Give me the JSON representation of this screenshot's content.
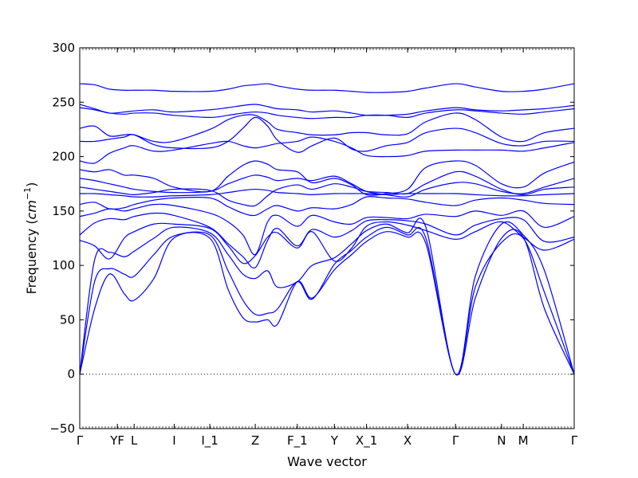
{
  "chart_data": {
    "type": "line",
    "title": "",
    "xlabel": "Wave vector",
    "ylabel_prefix": "Frequency (",
    "ylabel_unit_base": "cm",
    "ylabel_unit_exp": "−1",
    "ylabel_suffix": ")",
    "ylim": [
      -50,
      300
    ],
    "yticks": [
      -50,
      0,
      50,
      100,
      150,
      200,
      250,
      300
    ],
    "ytick_labels": [
      "−50",
      "0",
      "50",
      "100",
      "150",
      "200",
      "250",
      "300"
    ],
    "grid": false,
    "legend": "none",
    "line_color": "#0000ff",
    "zero_line_color": "#000000",
    "xlim": [
      0,
      1
    ],
    "high_symmetry_points": [
      {
        "label": "Γ",
        "x": 0.0
      },
      {
        "label": "YF",
        "x": 0.076
      },
      {
        "label": "L",
        "x": 0.11
      },
      {
        "label": "I",
        "x": 0.191
      },
      {
        "label": "I_1",
        "x": 0.263
      },
      {
        "label": "Z",
        "x": 0.355
      },
      {
        "label": "F_1",
        "x": 0.44
      },
      {
        "label": "Y",
        "x": 0.515
      },
      {
        "label": "X_1",
        "x": 0.58
      },
      {
        "label": "X",
        "x": 0.663
      },
      {
        "label": "Γ",
        "x": 0.76
      },
      {
        "label": "N",
        "x": 0.853
      },
      {
        "label": "M",
        "x": 0.897
      },
      {
        "label": "Γ",
        "x": 1.0
      }
    ],
    "series": [
      {
        "x": [
          0,
          0.03,
          0.06,
          0.09,
          0.11,
          0.15,
          0.19,
          0.263,
          0.3,
          0.33,
          0.355,
          0.38,
          0.4,
          0.44,
          0.47,
          0.515,
          0.55,
          0.58,
          0.62,
          0.663,
          0.7,
          0.76,
          0.8,
          0.853,
          0.897,
          0.94,
          1.0
        ],
        "y": [
          0,
          60,
          92,
          74,
          68,
          88,
          125,
          125,
          78,
          52,
          48,
          50,
          46,
          85,
          70,
          96,
          110,
          122,
          131,
          126,
          120,
          0,
          70,
          125,
          126,
          60,
          0
        ]
      },
      {
        "x": [
          0,
          0.03,
          0.06,
          0.09,
          0.11,
          0.15,
          0.19,
          0.263,
          0.3,
          0.33,
          0.355,
          0.38,
          0.4,
          0.44,
          0.47,
          0.515,
          0.55,
          0.58,
          0.62,
          0.663,
          0.7,
          0.76,
          0.8,
          0.853,
          0.897,
          0.94,
          1.0
        ],
        "y": [
          0,
          85,
          97,
          92,
          90,
          110,
          127,
          128,
          95,
          68,
          55,
          56,
          60,
          85,
          69,
          101,
          114,
          126,
          135,
          128,
          125,
          0,
          80,
          121,
          125,
          75,
          0
        ]
      },
      {
        "x": [
          0,
          0.03,
          0.06,
          0.09,
          0.11,
          0.15,
          0.19,
          0.263,
          0.3,
          0.33,
          0.355,
          0.38,
          0.4,
          0.44,
          0.47,
          0.515,
          0.55,
          0.58,
          0.62,
          0.663,
          0.7,
          0.76,
          0.8,
          0.853,
          0.897,
          0.94,
          1.0
        ],
        "y": [
          0,
          105,
          112,
          108,
          113,
          125,
          135,
          130,
          110,
          92,
          88,
          95,
          80,
          85,
          100,
          107,
          120,
          132,
          138,
          130,
          135,
          0,
          90,
          138,
          128,
          95,
          0
        ]
      },
      {
        "x": [
          0,
          0.03,
          0.06,
          0.09,
          0.11,
          0.15,
          0.19,
          0.263,
          0.3,
          0.33,
          0.355,
          0.38,
          0.4,
          0.44,
          0.47,
          0.515,
          0.55,
          0.58,
          0.62,
          0.663,
          0.7,
          0.76,
          0.8,
          0.853,
          0.897,
          0.94,
          1.0
        ],
        "y": [
          123,
          118,
          106,
          125,
          131,
          138,
          138,
          134,
          118,
          102,
          109,
          126,
          130,
          116,
          131,
          104,
          116,
          136,
          140,
          137,
          132,
          124,
          131,
          140,
          126,
          114,
          124
        ]
      },
      {
        "x": [
          0,
          0.03,
          0.06,
          0.09,
          0.11,
          0.15,
          0.19,
          0.263,
          0.3,
          0.33,
          0.355,
          0.38,
          0.4,
          0.44,
          0.47,
          0.515,
          0.55,
          0.58,
          0.62,
          0.663,
          0.7,
          0.76,
          0.8,
          0.853,
          0.897,
          0.94,
          1.0
        ],
        "y": [
          128,
          139,
          143,
          142,
          145,
          148,
          146,
          135,
          120,
          108,
          98,
          123,
          134,
          118,
          133,
          126,
          132,
          141,
          142,
          141,
          138,
          128,
          137,
          143,
          142,
          122,
          126
        ]
      },
      {
        "x": [
          0,
          0.03,
          0.06,
          0.09,
          0.11,
          0.15,
          0.19,
          0.263,
          0.3,
          0.33,
          0.355,
          0.38,
          0.4,
          0.44,
          0.47,
          0.515,
          0.55,
          0.58,
          0.62,
          0.663,
          0.7,
          0.76,
          0.8,
          0.853,
          0.897,
          0.94,
          1.0
        ],
        "y": [
          145,
          148,
          152,
          150,
          152,
          156,
          155,
          148,
          140,
          128,
          110,
          140,
          146,
          136,
          146,
          140,
          138,
          144,
          144,
          143,
          147,
          145,
          150,
          146,
          150,
          135,
          145
        ]
      },
      {
        "x": [
          0,
          0.03,
          0.06,
          0.09,
          0.11,
          0.15,
          0.19,
          0.263,
          0.3,
          0.33,
          0.355,
          0.38,
          0.4,
          0.44,
          0.47,
          0.515,
          0.55,
          0.58,
          0.62,
          0.663,
          0.7,
          0.76,
          0.8,
          0.853,
          0.897,
          0.94,
          1.0
        ],
        "y": [
          156,
          158,
          152,
          153,
          156,
          160,
          162,
          162,
          154,
          148,
          146,
          152,
          155,
          150,
          153,
          152,
          156,
          163,
          162,
          161,
          158,
          155,
          160,
          162,
          160,
          157,
          156
        ]
      },
      {
        "x": [
          0,
          0.03,
          0.06,
          0.09,
          0.11,
          0.15,
          0.19,
          0.263,
          0.3,
          0.33,
          0.355,
          0.38,
          0.4,
          0.44,
          0.47,
          0.515,
          0.55,
          0.58,
          0.62,
          0.663,
          0.7,
          0.76,
          0.8,
          0.853,
          0.897,
          0.94,
          1.0
        ],
        "y": [
          166,
          166,
          165,
          164,
          163,
          163,
          164,
          165,
          167,
          169,
          170,
          169,
          167,
          166,
          165,
          166,
          166,
          166,
          165,
          166,
          166,
          166,
          165,
          164,
          164,
          165,
          166
        ]
      },
      {
        "x": [
          0,
          0.03,
          0.06,
          0.09,
          0.11,
          0.15,
          0.19,
          0.263,
          0.3,
          0.33,
          0.355,
          0.38,
          0.4,
          0.44,
          0.47,
          0.515,
          0.55,
          0.58,
          0.62,
          0.663,
          0.7,
          0.76,
          0.8,
          0.853,
          0.897,
          0.94,
          1.0
        ],
        "y": [
          172,
          170,
          168,
          166,
          165,
          167,
          170,
          169,
          160,
          156,
          155,
          164,
          170,
          174,
          170,
          175,
          172,
          168,
          167,
          166,
          175,
          186,
          182,
          170,
          165,
          170,
          172
        ]
      },
      {
        "x": [
          0,
          0.03,
          0.06,
          0.09,
          0.11,
          0.15,
          0.19,
          0.263,
          0.3,
          0.33,
          0.355,
          0.38,
          0.4,
          0.44,
          0.47,
          0.515,
          0.55,
          0.58,
          0.62,
          0.663,
          0.7,
          0.76,
          0.8,
          0.853,
          0.897,
          0.94,
          1.0
        ],
        "y": [
          180,
          178,
          175,
          172,
          170,
          168,
          167,
          168,
          175,
          180,
          183,
          181,
          178,
          180,
          178,
          182,
          175,
          168,
          165,
          163,
          170,
          176,
          175,
          168,
          166,
          172,
          180
        ]
      },
      {
        "x": [
          0,
          0.03,
          0.06,
          0.09,
          0.11,
          0.15,
          0.19,
          0.263,
          0.3,
          0.33,
          0.355,
          0.38,
          0.4,
          0.44,
          0.47,
          0.515,
          0.55,
          0.58,
          0.62,
          0.663,
          0.7,
          0.76,
          0.8,
          0.853,
          0.897,
          0.94,
          1.0
        ],
        "y": [
          188,
          186,
          188,
          183,
          183,
          180,
          172,
          168,
          182,
          192,
          196,
          193,
          188,
          186,
          176,
          180,
          174,
          165,
          166,
          170,
          190,
          196,
          192,
          175,
          172,
          185,
          195
        ]
      },
      {
        "x": [
          0,
          0.03,
          0.06,
          0.09,
          0.11,
          0.15,
          0.19,
          0.263,
          0.3,
          0.33,
          0.355,
          0.38,
          0.4,
          0.44,
          0.47,
          0.515,
          0.55,
          0.58,
          0.62,
          0.663,
          0.7,
          0.76,
          0.8,
          0.853,
          0.897,
          0.94,
          1.0
        ],
        "y": [
          196,
          194,
          203,
          208,
          210,
          205,
          206,
          212,
          214,
          210,
          208,
          210,
          212,
          214,
          218,
          214,
          208,
          201,
          200,
          201,
          205,
          206,
          206,
          206,
          205,
          208,
          213
        ]
      },
      {
        "x": [
          0,
          0.03,
          0.06,
          0.09,
          0.11,
          0.15,
          0.19,
          0.263,
          0.3,
          0.33,
          0.355,
          0.38,
          0.4,
          0.44,
          0.47,
          0.515,
          0.55,
          0.58,
          0.62,
          0.663,
          0.7,
          0.76,
          0.8,
          0.853,
          0.897,
          0.94,
          1.0
        ],
        "y": [
          214,
          214,
          216,
          218,
          220,
          211,
          208,
          208,
          214,
          226,
          236,
          228,
          215,
          204,
          210,
          217,
          207,
          205,
          210,
          213,
          222,
          226,
          222,
          212,
          210,
          214,
          214
        ]
      },
      {
        "x": [
          0,
          0.03,
          0.06,
          0.09,
          0.11,
          0.15,
          0.19,
          0.263,
          0.3,
          0.33,
          0.355,
          0.38,
          0.4,
          0.44,
          0.47,
          0.515,
          0.55,
          0.58,
          0.62,
          0.663,
          0.7,
          0.76,
          0.8,
          0.853,
          0.897,
          0.94,
          1.0
        ],
        "y": [
          226,
          228,
          219,
          220,
          220,
          214,
          214,
          225,
          234,
          238,
          238,
          232,
          225,
          222,
          220,
          220,
          222,
          222,
          220,
          221,
          232,
          240,
          234,
          218,
          214,
          222,
          226
        ]
      },
      {
        "x": [
          0,
          0.03,
          0.06,
          0.09,
          0.11,
          0.15,
          0.19,
          0.263,
          0.3,
          0.33,
          0.355,
          0.38,
          0.4,
          0.44,
          0.47,
          0.515,
          0.55,
          0.58,
          0.62,
          0.663,
          0.7,
          0.76,
          0.8,
          0.853,
          0.897,
          0.94,
          1.0
        ],
        "y": [
          245,
          243,
          240,
          239,
          240,
          240,
          238,
          236,
          238,
          240,
          241,
          240,
          238,
          236,
          235,
          236,
          236,
          238,
          238,
          236,
          240,
          243,
          242,
          240,
          239,
          241,
          244
        ]
      },
      {
        "x": [
          0,
          0.03,
          0.06,
          0.09,
          0.11,
          0.15,
          0.19,
          0.263,
          0.3,
          0.33,
          0.355,
          0.38,
          0.4,
          0.44,
          0.47,
          0.515,
          0.55,
          0.58,
          0.62,
          0.663,
          0.7,
          0.76,
          0.8,
          0.853,
          0.897,
          0.94,
          1.0
        ],
        "y": [
          248,
          244,
          240,
          241,
          242,
          243,
          241,
          243,
          245,
          247,
          248,
          246,
          244,
          243,
          241,
          242,
          240,
          238,
          238,
          239,
          242,
          245,
          243,
          242,
          243,
          244,
          247
        ]
      },
      {
        "x": [
          0,
          0.03,
          0.06,
          0.09,
          0.11,
          0.15,
          0.19,
          0.263,
          0.3,
          0.33,
          0.355,
          0.38,
          0.4,
          0.44,
          0.47,
          0.515,
          0.55,
          0.58,
          0.62,
          0.663,
          0.7,
          0.76,
          0.8,
          0.853,
          0.897,
          0.94,
          1.0
        ],
        "y": [
          267,
          266,
          262,
          261,
          261,
          261,
          260,
          260,
          262,
          265,
          266,
          267,
          265,
          262,
          261,
          261,
          260,
          259,
          259,
          260,
          263,
          267,
          264,
          260,
          260,
          262,
          267
        ]
      }
    ]
  }
}
